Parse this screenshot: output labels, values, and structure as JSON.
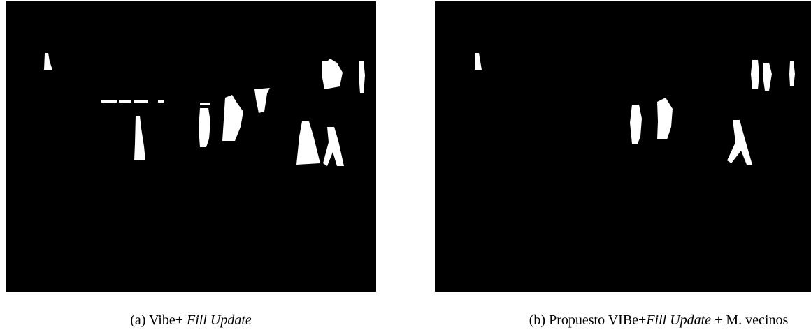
{
  "figures": [
    {
      "caption": [
        {
          "text": "(a) Vibe+ ",
          "italic": false
        },
        {
          "text": "Fill Update",
          "italic": true
        }
      ]
    },
    {
      "caption": [
        {
          "text": "(b) Propuesto VIBe+",
          "italic": false
        },
        {
          "text": "Fill Update",
          "italic": true
        },
        {
          "text": " + M. vecinos",
          "italic": false
        }
      ]
    }
  ]
}
